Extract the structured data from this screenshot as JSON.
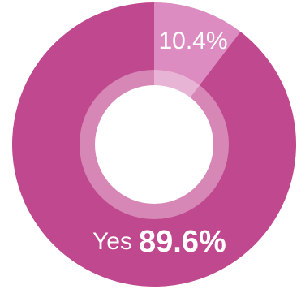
{
  "chart_data": {
    "type": "pie",
    "donut": true,
    "categories": [
      null,
      "Yes"
    ],
    "values": [
      10.4,
      89.6
    ],
    "value_labels": [
      "10.4%",
      "89.6%"
    ],
    "colors": [
      "#dc8cc0",
      "#c0488e"
    ]
  }
}
